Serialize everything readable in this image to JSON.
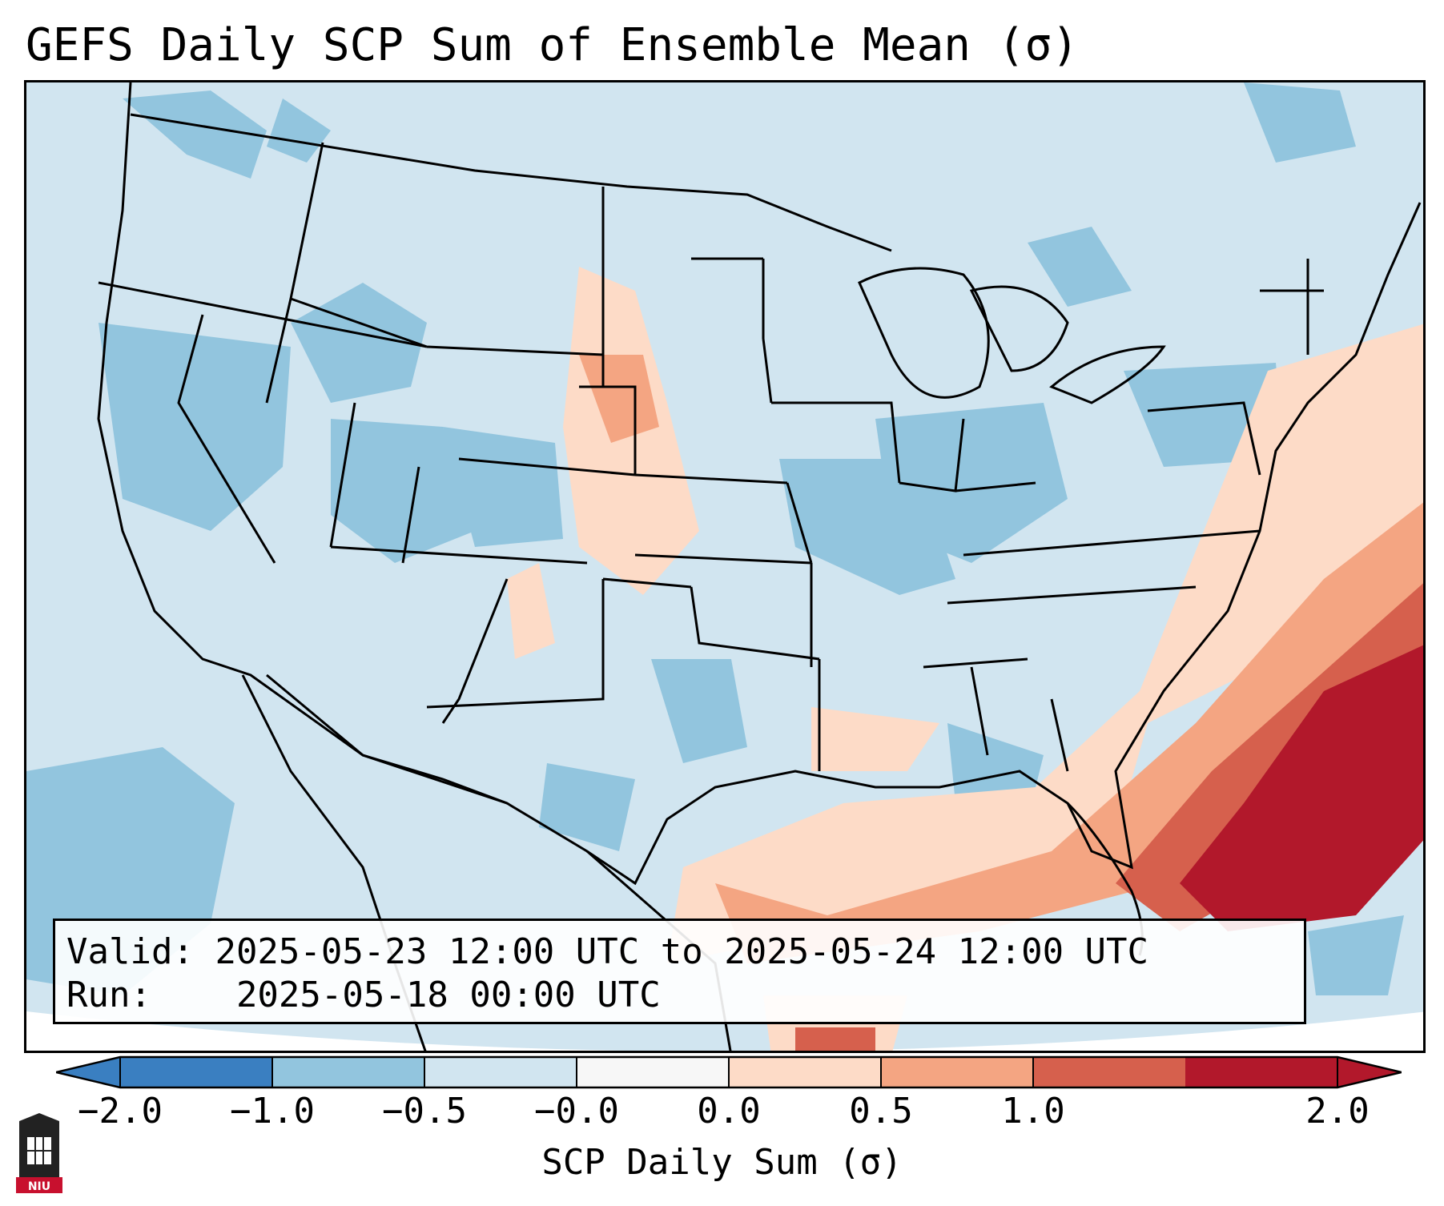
{
  "title": "GEFS Daily SCP Sum of Ensemble Mean (σ)",
  "info": {
    "valid_label": "Valid:",
    "valid_value": "2025-05-23 12:00 UTC to 2025-05-24 12:00 UTC",
    "run_label": "Run:",
    "run_value": "2025-05-18 00:00 UTC"
  },
  "colorbar": {
    "label": "SCP Daily Sum (σ)",
    "ticks": [
      "−2.0",
      "−1.0",
      "−0.5",
      "−0.0",
      "0.0",
      "0.5",
      "1.0",
      "2.0"
    ],
    "colors": [
      "#3a7fc1",
      "#92c5de",
      "#d1e5f0",
      "#f7f7f7",
      "#fddbc7",
      "#f4a582",
      "#d6604d",
      "#b2182b"
    ],
    "extend": "both"
  },
  "map": {
    "region": "Contiguous United States",
    "colors": {
      "background_light_blue": "#d1e5f0",
      "medium_blue": "#92c5de",
      "dark_blue": "#3a7fc1",
      "light_red": "#fddbc7",
      "medium_red": "#f4a582",
      "dark_red": "#d6604d",
      "deepest_red": "#b2182b",
      "border": "#000000"
    }
  },
  "logo": {
    "text": "NIU",
    "icon": "university-tower-icon",
    "color": "#c8102e"
  }
}
